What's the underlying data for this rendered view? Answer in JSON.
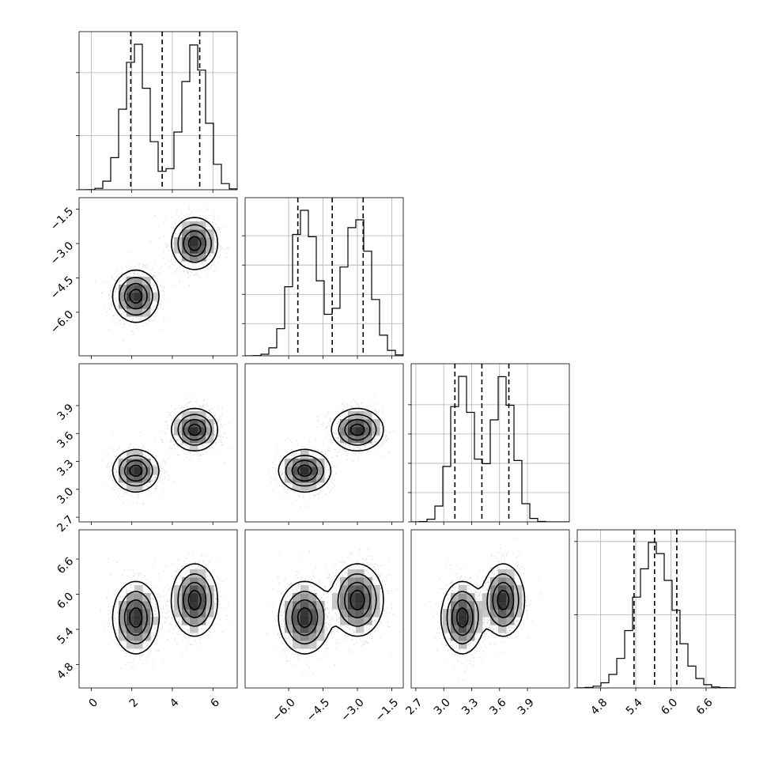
{
  "chart_data": {
    "type": "corner",
    "n_params": 4,
    "grid": true,
    "colors": {
      "ink": "#000000",
      "grid": "#b0b0b0",
      "scatter": "#9a9a9a"
    },
    "params": [
      {
        "range": [
          -0.6,
          7.2
        ],
        "ticks": [
          0,
          2,
          4,
          6
        ],
        "tick_labels": [
          "0",
          "2",
          "4",
          "6"
        ],
        "quantiles": [
          1.95,
          3.5,
          5.35
        ],
        "modes": [
          {
            "mu": 2.2,
            "sd": 0.6,
            "w": 0.5
          },
          {
            "mu": 5.1,
            "sd": 0.6,
            "w": 0.5
          }
        ],
        "hist_ylim": [
          0,
          1.08
        ],
        "hist_y_ticks": [
          0.0,
          0.37,
          0.8
        ]
      },
      {
        "range": [
          -7.9,
          -1.0
        ],
        "ticks": [
          -6.0,
          -4.5,
          -3.0,
          -1.5
        ],
        "tick_labels": [
          "−6.0",
          "−4.5",
          "−3.0",
          "−1.5"
        ],
        "quantiles": [
          -5.6,
          -4.1,
          -2.75
        ],
        "modes": [
          {
            "mu": -5.3,
            "sd": 0.58,
            "w": 0.5
          },
          {
            "mu": -3.0,
            "sd": 0.58,
            "w": 0.5
          }
        ],
        "hist_ylim": [
          0,
          1.08
        ],
        "hist_y_ticks": [
          0.0,
          0.22,
          0.42,
          0.62,
          0.82
        ]
      },
      {
        "range": [
          2.65,
          4.35
        ],
        "ticks": [
          2.7,
          3.0,
          3.3,
          3.6,
          3.9
        ],
        "tick_labels": [
          "2.7",
          "3.0",
          "3.3",
          "3.6",
          "3.9"
        ],
        "quantiles": [
          3.12,
          3.41,
          3.7
        ],
        "modes": [
          {
            "mu": 3.2,
            "sd": 0.12,
            "w": 0.5
          },
          {
            "mu": 3.64,
            "sd": 0.12,
            "w": 0.5
          }
        ],
        "hist_ylim": [
          0,
          1.08
        ],
        "hist_y_ticks": [
          0.0,
          0.2,
          0.4,
          0.6,
          0.8
        ]
      },
      {
        "range": [
          4.4,
          7.1
        ],
        "ticks": [
          4.8,
          5.4,
          6.0,
          6.6
        ],
        "tick_labels": [
          "4.8",
          "5.4",
          "6.0",
          "6.6"
        ],
        "quantiles": [
          5.37,
          5.72,
          6.1
        ],
        "modes": [
          {
            "mu": 5.72,
            "sd": 0.33,
            "w": 1.0
          }
        ],
        "hist_ylim": [
          0,
          1.08
        ],
        "hist_y_ticks": [
          0.0,
          0.5,
          1.0
        ]
      }
    ],
    "clusters": [
      {
        "center": [
          2.2,
          -5.3,
          3.2,
          5.6
        ],
        "sd": [
          0.55,
          0.55,
          0.11,
          0.3
        ]
      },
      {
        "center": [
          5.1,
          -3.0,
          3.64,
          5.9
        ],
        "sd": [
          0.55,
          0.55,
          0.11,
          0.3
        ]
      }
    ]
  }
}
